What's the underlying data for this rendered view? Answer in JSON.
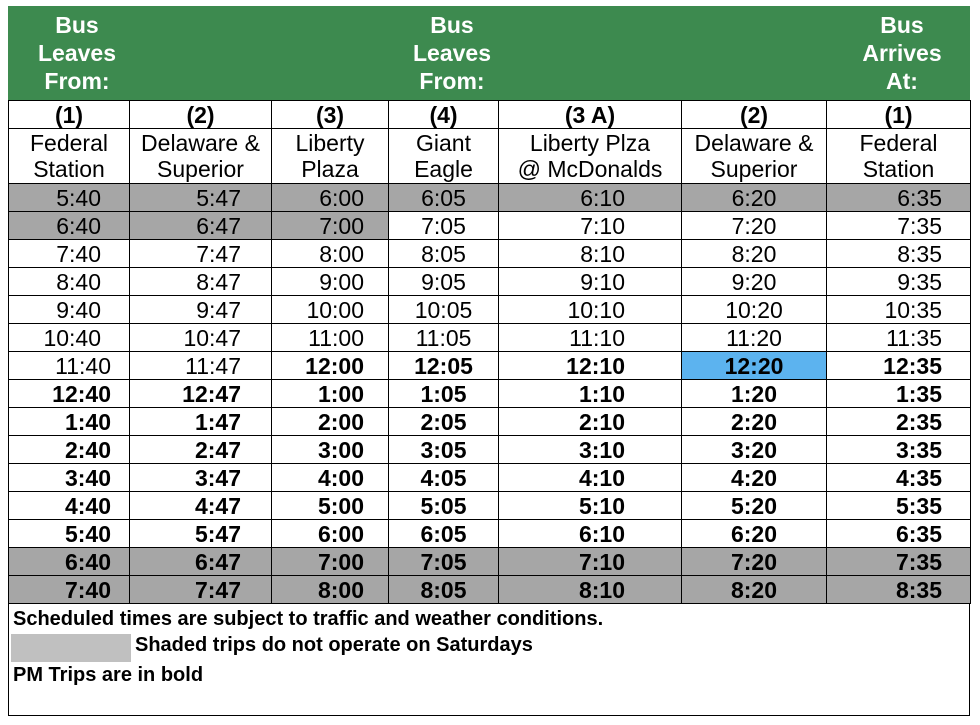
{
  "header": {
    "left": "Bus\nLeaves\nFrom:",
    "middle": "Bus\nLeaves\nFrom:",
    "right": "Bus\nArrives\nAt:"
  },
  "stops": [
    {
      "num": "(1)",
      "name": "Federal\nStation"
    },
    {
      "num": "(2)",
      "name": "Delaware &\nSuperior"
    },
    {
      "num": "(3)",
      "name": "Liberty\nPlaza"
    },
    {
      "num": "(4)",
      "name": "Giant\nEagle"
    },
    {
      "num": "(3 A)",
      "name": "Liberty Plza\n@ McDonalds"
    },
    {
      "num": "(2)",
      "name": "Delaware &\nSuperior"
    },
    {
      "num": "(1)",
      "name": "Federal\nStation"
    }
  ],
  "trips": [
    {
      "times": [
        "5:40",
        "5:47",
        "6:00",
        "6:05",
        "6:10",
        "6:20",
        "6:35"
      ],
      "pm": false,
      "shaded": [
        true,
        true,
        true,
        true,
        true,
        true,
        true
      ]
    },
    {
      "times": [
        "6:40",
        "6:47",
        "7:00",
        "7:05",
        "7:10",
        "7:20",
        "7:35"
      ],
      "pm": false,
      "shaded": [
        true,
        true,
        true,
        false,
        false,
        false,
        false
      ]
    },
    {
      "times": [
        "7:40",
        "7:47",
        "8:00",
        "8:05",
        "8:10",
        "8:20",
        "8:35"
      ],
      "pm": false,
      "shaded": [
        false,
        false,
        false,
        false,
        false,
        false,
        false
      ]
    },
    {
      "times": [
        "8:40",
        "8:47",
        "9:00",
        "9:05",
        "9:10",
        "9:20",
        "9:35"
      ],
      "pm": false,
      "shaded": [
        false,
        false,
        false,
        false,
        false,
        false,
        false
      ]
    },
    {
      "times": [
        "9:40",
        "9:47",
        "10:00",
        "10:05",
        "10:10",
        "10:20",
        "10:35"
      ],
      "pm": false,
      "shaded": [
        false,
        false,
        false,
        false,
        false,
        false,
        false
      ]
    },
    {
      "times": [
        "10:40",
        "10:47",
        "11:00",
        "11:05",
        "11:10",
        "11:20",
        "11:35"
      ],
      "pm": false,
      "shaded": [
        false,
        false,
        false,
        false,
        false,
        false,
        false
      ]
    },
    {
      "times": [
        "11:40",
        "11:47",
        "12:00",
        "12:05",
        "12:10",
        "12:20",
        "12:35"
      ],
      "pm": "partial",
      "shaded": [
        false,
        false,
        false,
        false,
        false,
        false,
        false
      ],
      "highlight": 5
    },
    {
      "times": [
        "12:40",
        "12:47",
        "1:00",
        "1:05",
        "1:10",
        "1:20",
        "1:35"
      ],
      "pm": true,
      "shaded": [
        false,
        false,
        false,
        false,
        false,
        false,
        false
      ]
    },
    {
      "times": [
        "1:40",
        "1:47",
        "2:00",
        "2:05",
        "2:10",
        "2:20",
        "2:35"
      ],
      "pm": true,
      "shaded": [
        false,
        false,
        false,
        false,
        false,
        false,
        false
      ]
    },
    {
      "times": [
        "2:40",
        "2:47",
        "3:00",
        "3:05",
        "3:10",
        "3:20",
        "3:35"
      ],
      "pm": true,
      "shaded": [
        false,
        false,
        false,
        false,
        false,
        false,
        false
      ]
    },
    {
      "times": [
        "3:40",
        "3:47",
        "4:00",
        "4:05",
        "4:10",
        "4:20",
        "4:35"
      ],
      "pm": true,
      "shaded": [
        false,
        false,
        false,
        false,
        false,
        false,
        false
      ]
    },
    {
      "times": [
        "4:40",
        "4:47",
        "5:00",
        "5:05",
        "5:10",
        "5:20",
        "5:35"
      ],
      "pm": true,
      "shaded": [
        false,
        false,
        false,
        false,
        false,
        false,
        false
      ]
    },
    {
      "times": [
        "5:40",
        "5:47",
        "6:00",
        "6:05",
        "6:10",
        "6:20",
        "6:35"
      ],
      "pm": true,
      "shaded": [
        false,
        false,
        false,
        false,
        false,
        false,
        false
      ]
    },
    {
      "times": [
        "6:40",
        "6:47",
        "7:00",
        "7:05",
        "7:10",
        "7:20",
        "7:35"
      ],
      "pm": true,
      "shaded": [
        true,
        true,
        true,
        true,
        true,
        true,
        true
      ]
    },
    {
      "times": [
        "7:40",
        "7:47",
        "8:00",
        "8:05",
        "8:10",
        "8:20",
        "8:35"
      ],
      "pm": true,
      "shaded": [
        true,
        true,
        true,
        true,
        true,
        true,
        true
      ]
    }
  ],
  "notes": {
    "line1": "Scheduled times are subject to traffic and weather conditions.",
    "line2": "Shaded trips do not operate on Saturdays",
    "line3": "PM Trips are in bold"
  },
  "colors": {
    "header_green": "#3d8a4f",
    "shade_gray": "#a6a6a6",
    "highlight_blue": "#5cb3ef"
  }
}
